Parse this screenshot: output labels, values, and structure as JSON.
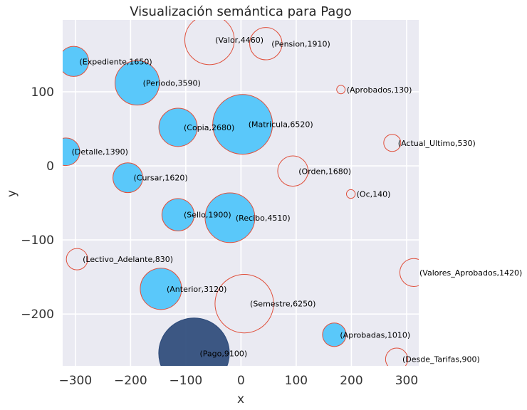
{
  "chart_data": {
    "type": "scatter",
    "title": "Visualización semántica para Pago",
    "xlabel": "x",
    "ylabel": "y",
    "xlim": [
      -323,
      322
    ],
    "ylim": [
      -270,
      197
    ],
    "xticks": [
      -300,
      -200,
      -100,
      0,
      100,
      200,
      300
    ],
    "yticks": [
      -200,
      -100,
      0,
      100
    ],
    "grid": true,
    "points": [
      {
        "label": "(Valor,4460)",
        "x": -57,
        "y": 170,
        "size": 4460,
        "kind": "hollow"
      },
      {
        "label": "(Pension,1910)",
        "x": 45,
        "y": 165,
        "size": 1910,
        "kind": "hollow"
      },
      {
        "label": "(Expediente,1650)",
        "x": -303,
        "y": 141,
        "size": 1650,
        "kind": "filled"
      },
      {
        "label": "(Periodo,3590)",
        "x": -188,
        "y": 112,
        "size": 3590,
        "kind": "filled"
      },
      {
        "label": "(Aprobados,130)",
        "x": 181,
        "y": 103,
        "size": 130,
        "kind": "hollow"
      },
      {
        "label": "(Copia,2680)",
        "x": -114,
        "y": 52,
        "size": 2680,
        "kind": "filled"
      },
      {
        "label": "(Matricula,6520)",
        "x": 3,
        "y": 56,
        "size": 6520,
        "kind": "filled"
      },
      {
        "label": "(Actual_Ultimo,530)",
        "x": 274,
        "y": 31,
        "size": 530,
        "kind": "hollow"
      },
      {
        "label": "(Detalle,1390)",
        "x": -317,
        "y": 19,
        "size": 1390,
        "kind": "filled"
      },
      {
        "label": "(Orden,1680)",
        "x": 94,
        "y": -7,
        "size": 1680,
        "kind": "hollow"
      },
      {
        "label": "(Cursar,1620)",
        "x": -205,
        "y": -16,
        "size": 1620,
        "kind": "filled"
      },
      {
        "label": "(Oc,140)",
        "x": 199,
        "y": -38,
        "size": 140,
        "kind": "hollow"
      },
      {
        "label": "(Sello,1900)",
        "x": -114,
        "y": -66,
        "size": 1900,
        "kind": "filled"
      },
      {
        "label": "(Recibo,4510)",
        "x": -20,
        "y": -70,
        "size": 4510,
        "kind": "filled"
      },
      {
        "label": "(Lectivo_Adelante,830)",
        "x": -297,
        "y": -126,
        "size": 830,
        "kind": "hollow"
      },
      {
        "label": "(Valores_Aprobados,1420)",
        "x": 313,
        "y": -144,
        "size": 1420,
        "kind": "hollow"
      },
      {
        "label": "(Anterior,3120)",
        "x": -145,
        "y": -166,
        "size": 3120,
        "kind": "filled"
      },
      {
        "label": "(Semestre,6250)",
        "x": 6,
        "y": -186,
        "size": 6250,
        "kind": "hollow"
      },
      {
        "label": "(Aprobadas,1010)",
        "x": 169,
        "y": -228,
        "size": 1010,
        "kind": "filled"
      },
      {
        "label": "(Pago,9100)",
        "x": -85,
        "y": -253,
        "size": 9100,
        "kind": "query"
      },
      {
        "label": "(Desde_Tarifas,900)",
        "x": 282,
        "y": -261,
        "size": 900,
        "kind": "hollow"
      }
    ]
  },
  "colors": {
    "plot_background": "#eaeaf2",
    "grid": "#ffffff",
    "filled": "#5ac8fa",
    "hollow_fill": "#eaeaf2",
    "edge": "#e0503c",
    "query": "#2c4a7a"
  }
}
